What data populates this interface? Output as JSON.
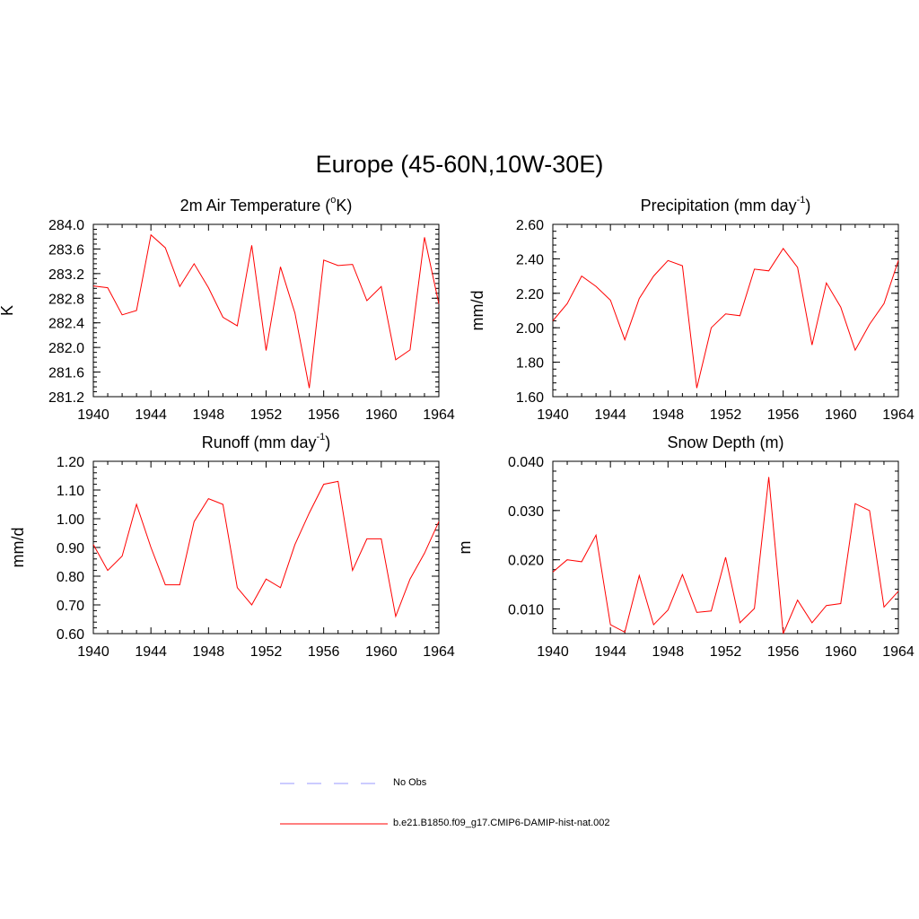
{
  "figure": {
    "title": "Europe (45-60N,10W-30E)"
  },
  "panels": {
    "temp": {
      "title_main": "2m Air Temperature (",
      "title_sup": "o",
      "title_end": "K)"
    },
    "precip": {
      "title_main": "Precipitation (mm day",
      "title_sup": "-1",
      "title_end": ")"
    },
    "runoff": {
      "title_main": "Runoff (mm day",
      "title_sup": "-1",
      "title_end": ")"
    },
    "snow": {
      "title_main": "Snow Depth (m)",
      "title_sup": "",
      "title_end": ""
    }
  },
  "legend": {
    "obs_label": "No Obs",
    "model_label": "b.e21.B1850.f09_g17.CMIP6-DAMIP-hist-nat.002",
    "obs_color": "#9999ff",
    "model_color": "#ff0000"
  },
  "chart_data": [
    {
      "type": "line",
      "title": "2m Air Temperature (oK)",
      "xlabel": "",
      "ylabel": "K",
      "xlim": [
        1940,
        1964
      ],
      "ylim": [
        281.2,
        284.0
      ],
      "xticks": [
        1940,
        1944,
        1948,
        1952,
        1956,
        1960,
        1964
      ],
      "yticks": [
        281.2,
        281.6,
        282.0,
        282.4,
        282.8,
        283.2,
        283.6,
        284.0
      ],
      "ytick_labels": [
        "281.2",
        "281.6",
        "282.0",
        "282.4",
        "282.8",
        "283.2",
        "283.6",
        "284.0"
      ],
      "x": [
        1940,
        1941,
        1942,
        1943,
        1944,
        1945,
        1946,
        1947,
        1948,
        1949,
        1950,
        1951,
        1952,
        1953,
        1954,
        1955,
        1956,
        1957,
        1958,
        1959,
        1960,
        1961,
        1962,
        1963,
        1964
      ],
      "series": [
        {
          "values": [
            283.0,
            282.97,
            282.53,
            282.6,
            283.83,
            283.62,
            282.99,
            283.36,
            282.97,
            282.49,
            282.35,
            283.66,
            281.95,
            283.31,
            282.56,
            281.34,
            283.42,
            283.33,
            283.35,
            282.76,
            282.99,
            281.8,
            281.96,
            283.79,
            282.71
          ],
          "color": "#ff0000"
        }
      ]
    },
    {
      "type": "line",
      "title": "Precipitation (mm day-1)",
      "xlabel": "",
      "ylabel": "mm/d",
      "xlim": [
        1940,
        1964
      ],
      "ylim": [
        1.6,
        2.6
      ],
      "xticks": [
        1940,
        1944,
        1948,
        1952,
        1956,
        1960,
        1964
      ],
      "yticks": [
        1.6,
        1.8,
        2.0,
        2.2,
        2.4,
        2.6
      ],
      "ytick_labels": [
        "1.60",
        "1.80",
        "2.00",
        "2.20",
        "2.40",
        "2.60"
      ],
      "x": [
        1940,
        1941,
        1942,
        1943,
        1944,
        1945,
        1946,
        1947,
        1948,
        1949,
        1950,
        1951,
        1952,
        1953,
        1954,
        1955,
        1956,
        1957,
        1958,
        1959,
        1960,
        1961,
        1962,
        1963,
        1964
      ],
      "series": [
        {
          "values": [
            2.04,
            2.14,
            2.3,
            2.24,
            2.16,
            1.93,
            2.17,
            2.3,
            2.39,
            2.36,
            1.65,
            2.0,
            2.08,
            2.07,
            2.34,
            2.33,
            2.46,
            2.35,
            1.9,
            2.26,
            2.12,
            1.87,
            2.02,
            2.14,
            2.39
          ],
          "color": "#ff0000"
        }
      ]
    },
    {
      "type": "line",
      "title": "Runoff (mm day-1)",
      "xlabel": "",
      "ylabel": "mm/d",
      "xlim": [
        1940,
        1964
      ],
      "ylim": [
        0.6,
        1.2
      ],
      "xticks": [
        1940,
        1944,
        1948,
        1952,
        1956,
        1960,
        1964
      ],
      "yticks": [
        0.6,
        0.7,
        0.8,
        0.9,
        1.0,
        1.1,
        1.2
      ],
      "ytick_labels": [
        "0.60",
        "0.70",
        "0.80",
        "0.90",
        "1.00",
        "1.10",
        "1.20"
      ],
      "x": [
        1940,
        1941,
        1942,
        1943,
        1944,
        1945,
        1946,
        1947,
        1948,
        1949,
        1950,
        1951,
        1952,
        1953,
        1954,
        1955,
        1956,
        1957,
        1958,
        1959,
        1960,
        1961,
        1962,
        1963,
        1964
      ],
      "series": [
        {
          "values": [
            0.91,
            0.82,
            0.87,
            1.05,
            0.9,
            0.77,
            0.77,
            0.99,
            1.07,
            1.05,
            0.76,
            0.7,
            0.79,
            0.76,
            0.91,
            1.02,
            1.12,
            1.13,
            0.82,
            0.93,
            0.93,
            0.66,
            0.79,
            0.88,
            0.99
          ],
          "color": "#ff0000"
        }
      ]
    },
    {
      "type": "line",
      "title": "Snow Depth (m)",
      "xlabel": "",
      "ylabel": "m",
      "xlim": [
        1940,
        1964
      ],
      "ylim": [
        0.005,
        0.04
      ],
      "xticks": [
        1940,
        1944,
        1948,
        1952,
        1956,
        1960,
        1964
      ],
      "yticks": [
        0.01,
        0.02,
        0.03,
        0.04
      ],
      "ytick_labels": [
        "0.010",
        "0.020",
        "0.030",
        "0.040"
      ],
      "x": [
        1940,
        1941,
        1942,
        1943,
        1944,
        1945,
        1946,
        1947,
        1948,
        1949,
        1950,
        1951,
        1952,
        1953,
        1954,
        1955,
        1956,
        1957,
        1958,
        1959,
        1960,
        1961,
        1962,
        1963,
        1964
      ],
      "series": [
        {
          "values": [
            0.0175,
            0.02,
            0.0196,
            0.025,
            0.0068,
            0.0053,
            0.0168,
            0.0068,
            0.0098,
            0.017,
            0.0093,
            0.0096,
            0.0205,
            0.0072,
            0.0101,
            0.0368,
            0.005,
            0.0118,
            0.0072,
            0.0107,
            0.0111,
            0.0314,
            0.03,
            0.0104,
            0.0136
          ],
          "color": "#ff0000"
        }
      ]
    }
  ]
}
